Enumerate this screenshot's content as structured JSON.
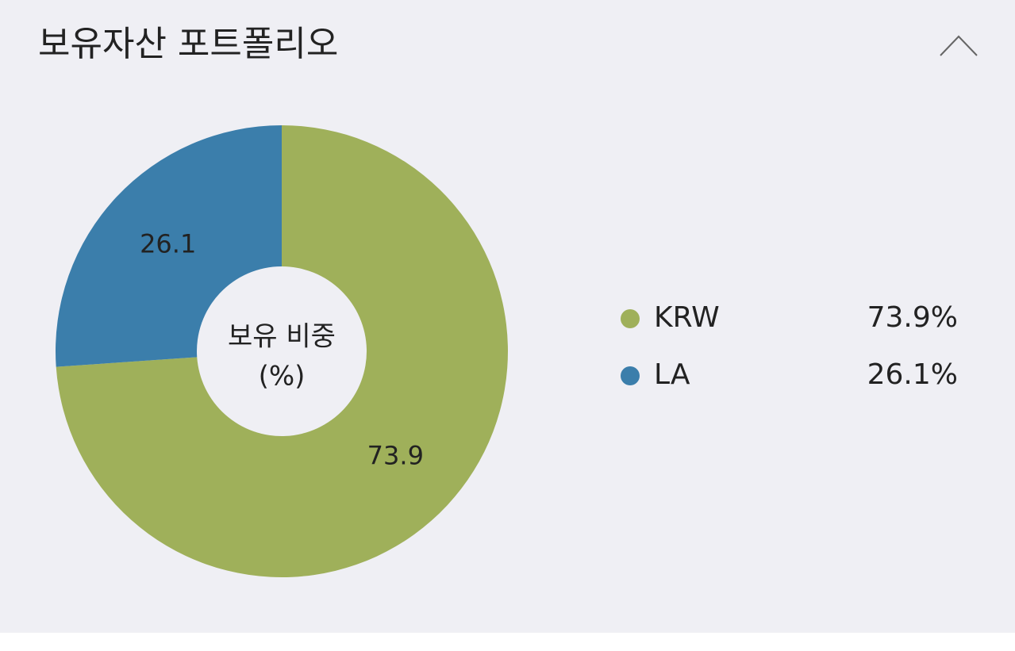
{
  "title": "보유자산 포트폴리오",
  "chart_data": {
    "type": "donut",
    "center_label": [
      "보유 비중",
      "(%)"
    ],
    "categories": [
      "KRW",
      "LA"
    ],
    "values": [
      73.9,
      26.1
    ],
    "value_labels": [
      "73.9%",
      "26.1%"
    ],
    "colors": [
      "#9fb05a",
      "#3b7eab"
    ]
  }
}
